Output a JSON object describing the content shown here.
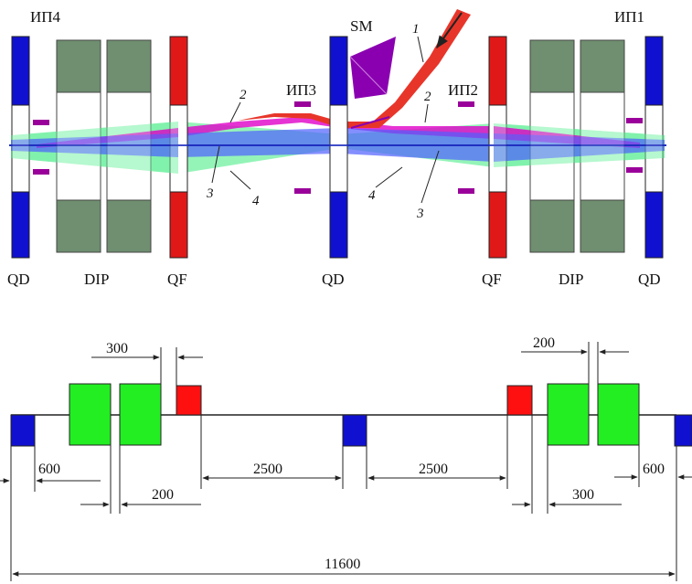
{
  "top": {
    "pickups": [
      "ИП4",
      "ИП3",
      "ИП2",
      "ИП1"
    ],
    "septum_label": "SM",
    "magnet_labels": [
      "QD",
      "DIP",
      "QF",
      "QD",
      "QF",
      "DIP",
      "QD"
    ],
    "beam_numbers": [
      "1",
      "2",
      "2",
      "3",
      "3",
      "4",
      "4"
    ]
  },
  "bottom": {
    "dimensions": [
      "300",
      "200",
      "600",
      "200",
      "2500",
      "2500",
      "300",
      "600",
      "11600"
    ]
  },
  "colors": {
    "quad_defocus": "#1010d0",
    "quad_focus": "#e01818",
    "dipole_top": "#6f8f70",
    "dipole_bottom": "#22dd22",
    "beam_injected": "#e8352a",
    "beam_2": "#e000c8",
    "beam_3": "#5060ff",
    "beam_4": "#70f0a0",
    "septum": "#8a00b0",
    "pickup": "#9a009a"
  }
}
